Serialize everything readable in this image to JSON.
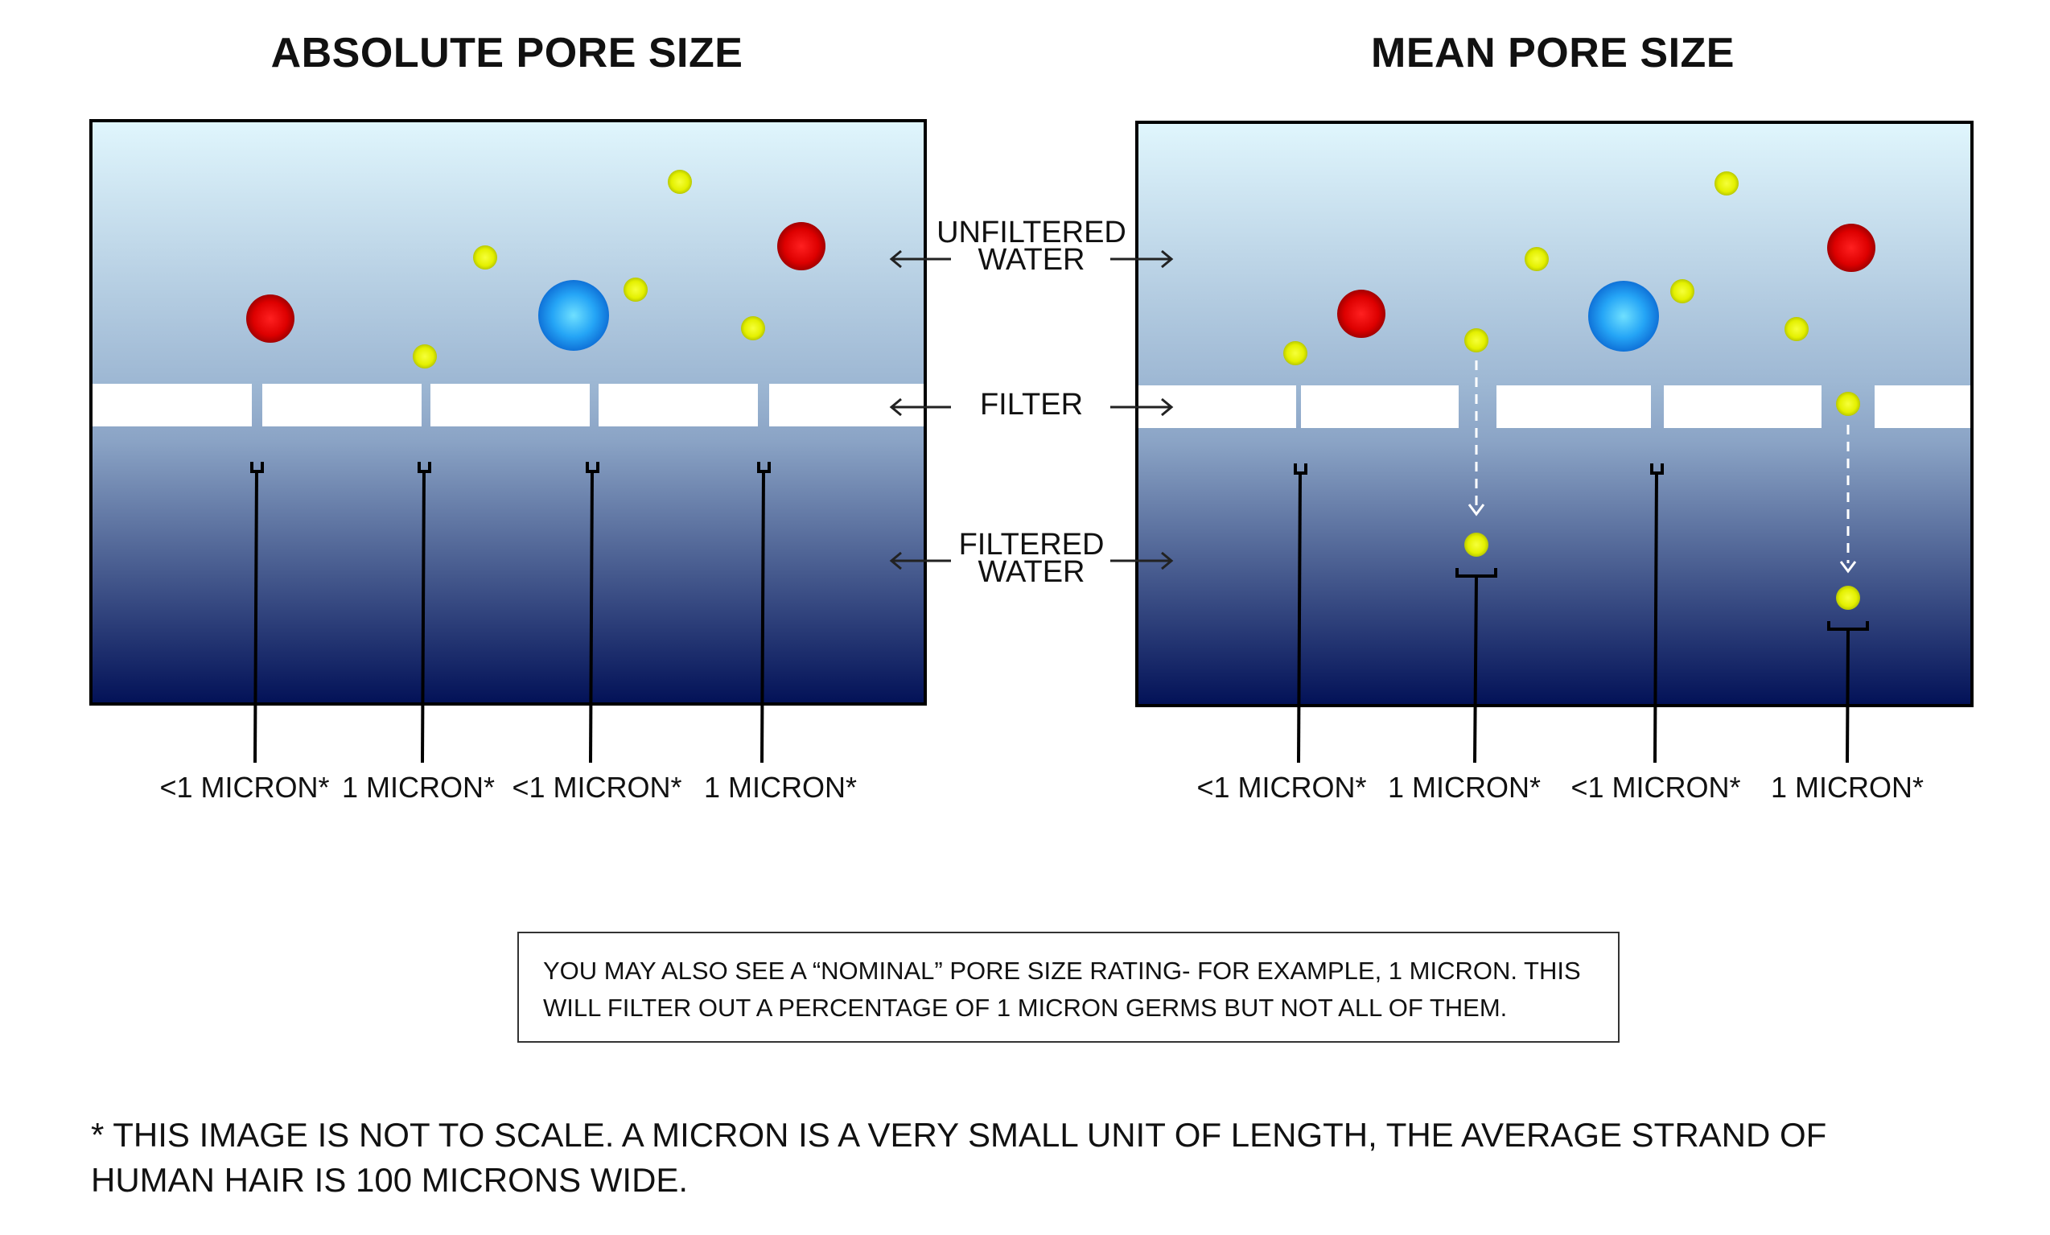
{
  "titles": {
    "absolute": "ABSOLUTE PORE SIZE",
    "mean": "MEAN PORE SIZE"
  },
  "labels": {
    "unfiltered_line1": "UNFILTERED",
    "unfiltered_line2": "WATER",
    "filter": "FILTER",
    "filtered_line1": "FILTERED",
    "filtered_line2": "WATER"
  },
  "absolute_micron_labels": [
    "<1 MICRON*",
    "1 MICRON*",
    "<1 MICRON*",
    "1 MICRON*"
  ],
  "mean_micron_labels": [
    "<1 MICRON*",
    "1 MICRON*",
    "<1 MICRON*",
    "1 MICRON*"
  ],
  "note": "YOU MAY ALSO SEE A “NOMINAL” PORE SIZE RATING- FOR EXAMPLE, 1 MICRON. THIS WILL FILTER OUT A PERCENTAGE OF 1 MICRON GERMS BUT NOT ALL OF THEM.",
  "footnote": "* THIS IMAGE IS NOT TO SCALE. A MICRON IS A VERY SMALL UNIT OF LENGTH, THE AVERAGE STRAND OF HUMAN HAIR IS 100 MICRONS WIDE.",
  "colors": {
    "water_top": "#e0f6fd",
    "water_mid": "#9db7d3",
    "water_bottom": "#021157",
    "particle_red": "#e40000",
    "particle_blue": "#1e9bf5",
    "particle_yellow": "#e6f500",
    "filter": "#ffffff"
  }
}
